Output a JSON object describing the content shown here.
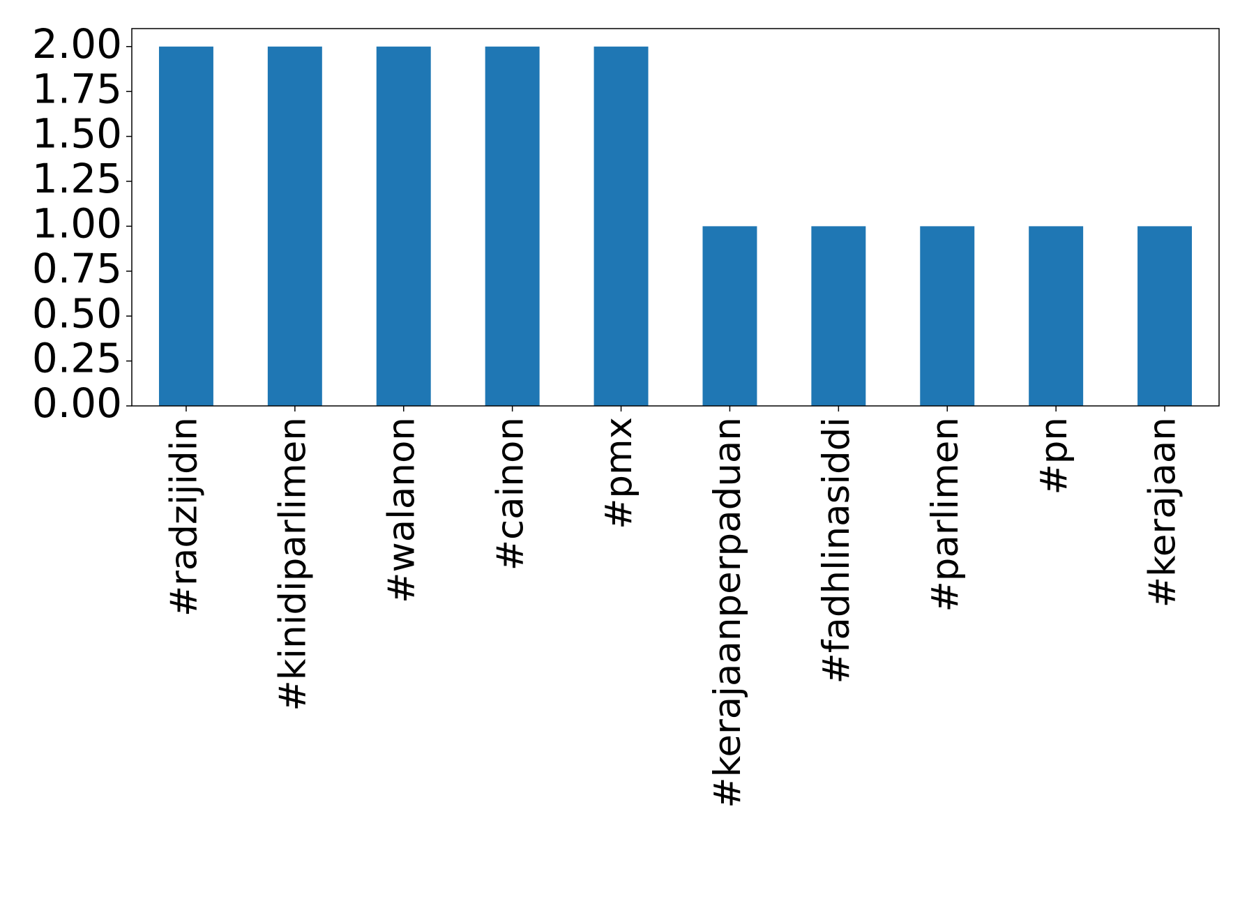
{
  "chart_data": {
    "type": "bar",
    "categories": [
      "#radzijidin",
      "#kinidiparlimen",
      "#walanon",
      "#cainon",
      "#pmx",
      "#kerajaanperpaduan",
      "#fadhlinasiddi",
      "#parlimen",
      "#pn",
      "#kerajaan"
    ],
    "values": [
      2,
      2,
      2,
      2,
      2,
      1,
      1,
      1,
      1,
      1
    ],
    "color": "#1f77b4",
    "ylim": [
      0,
      2.1
    ],
    "yticks": [
      {
        "value": 0,
        "label": "0.00"
      },
      0.25,
      {
        "value": 0.5,
        "label": "0.50"
      },
      0.75,
      {
        "value": 1,
        "label": "1.00"
      },
      1.25,
      {
        "value": 1.5,
        "label": "1.50"
      },
      1.75,
      {
        "value": 2,
        "label": "2.00"
      }
    ],
    "grid": false
  }
}
